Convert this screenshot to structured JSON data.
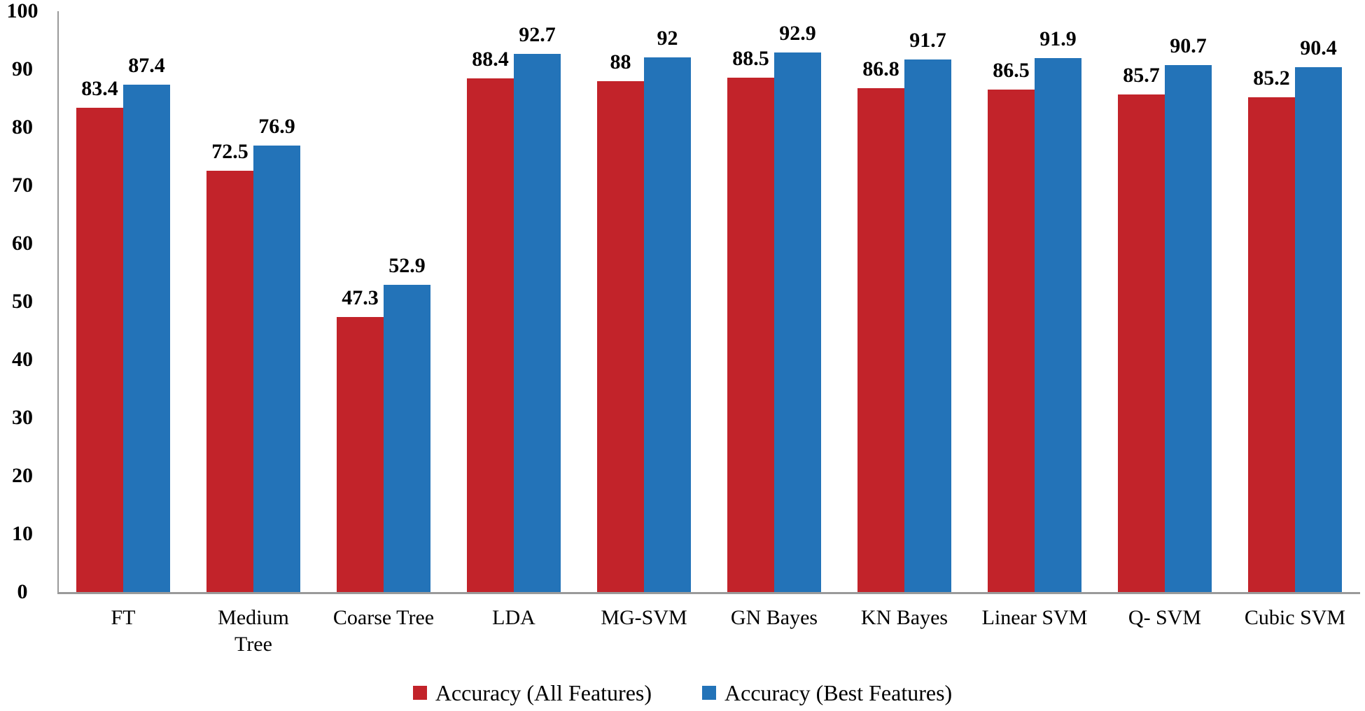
{
  "chart_data": {
    "type": "bar",
    "categories": [
      "FT",
      "Medium\nTree",
      "Coarse Tree",
      "LDA",
      "MG-SVM",
      "GN Bayes",
      "KN Bayes",
      "Linear SVM",
      "Q- SVM",
      "Cubic SVM"
    ],
    "series": [
      {
        "name": "Accuracy (All Features)",
        "color": "#c2232a",
        "values": [
          83.4,
          72.5,
          47.3,
          88.4,
          88,
          88.5,
          86.8,
          86.5,
          85.7,
          85.2
        ],
        "labels": [
          "83.4",
          "72.5",
          "47.3",
          "88.4",
          "88",
          "88.5",
          "86.8",
          "86.5",
          "85.7",
          "85.2"
        ]
      },
      {
        "name": "Accuracy (Best Features)",
        "color": "#2373b8",
        "values": [
          87.4,
          76.9,
          52.9,
          92.7,
          92,
          92.9,
          91.7,
          91.9,
          90.7,
          90.4
        ],
        "labels": [
          "87.4",
          "76.9",
          "52.9",
          "92.7",
          "92",
          "92.9",
          "91.7",
          "91.9",
          "90.7",
          "90.4"
        ]
      }
    ],
    "title": "",
    "xlabel": "",
    "ylabel": "",
    "ylim": [
      0,
      100
    ],
    "yticks": [
      0,
      10,
      20,
      30,
      40,
      50,
      60,
      70,
      80,
      90,
      100
    ],
    "grid": false,
    "legend_position": "bottom",
    "axis_color": "#9a9a9a"
  }
}
